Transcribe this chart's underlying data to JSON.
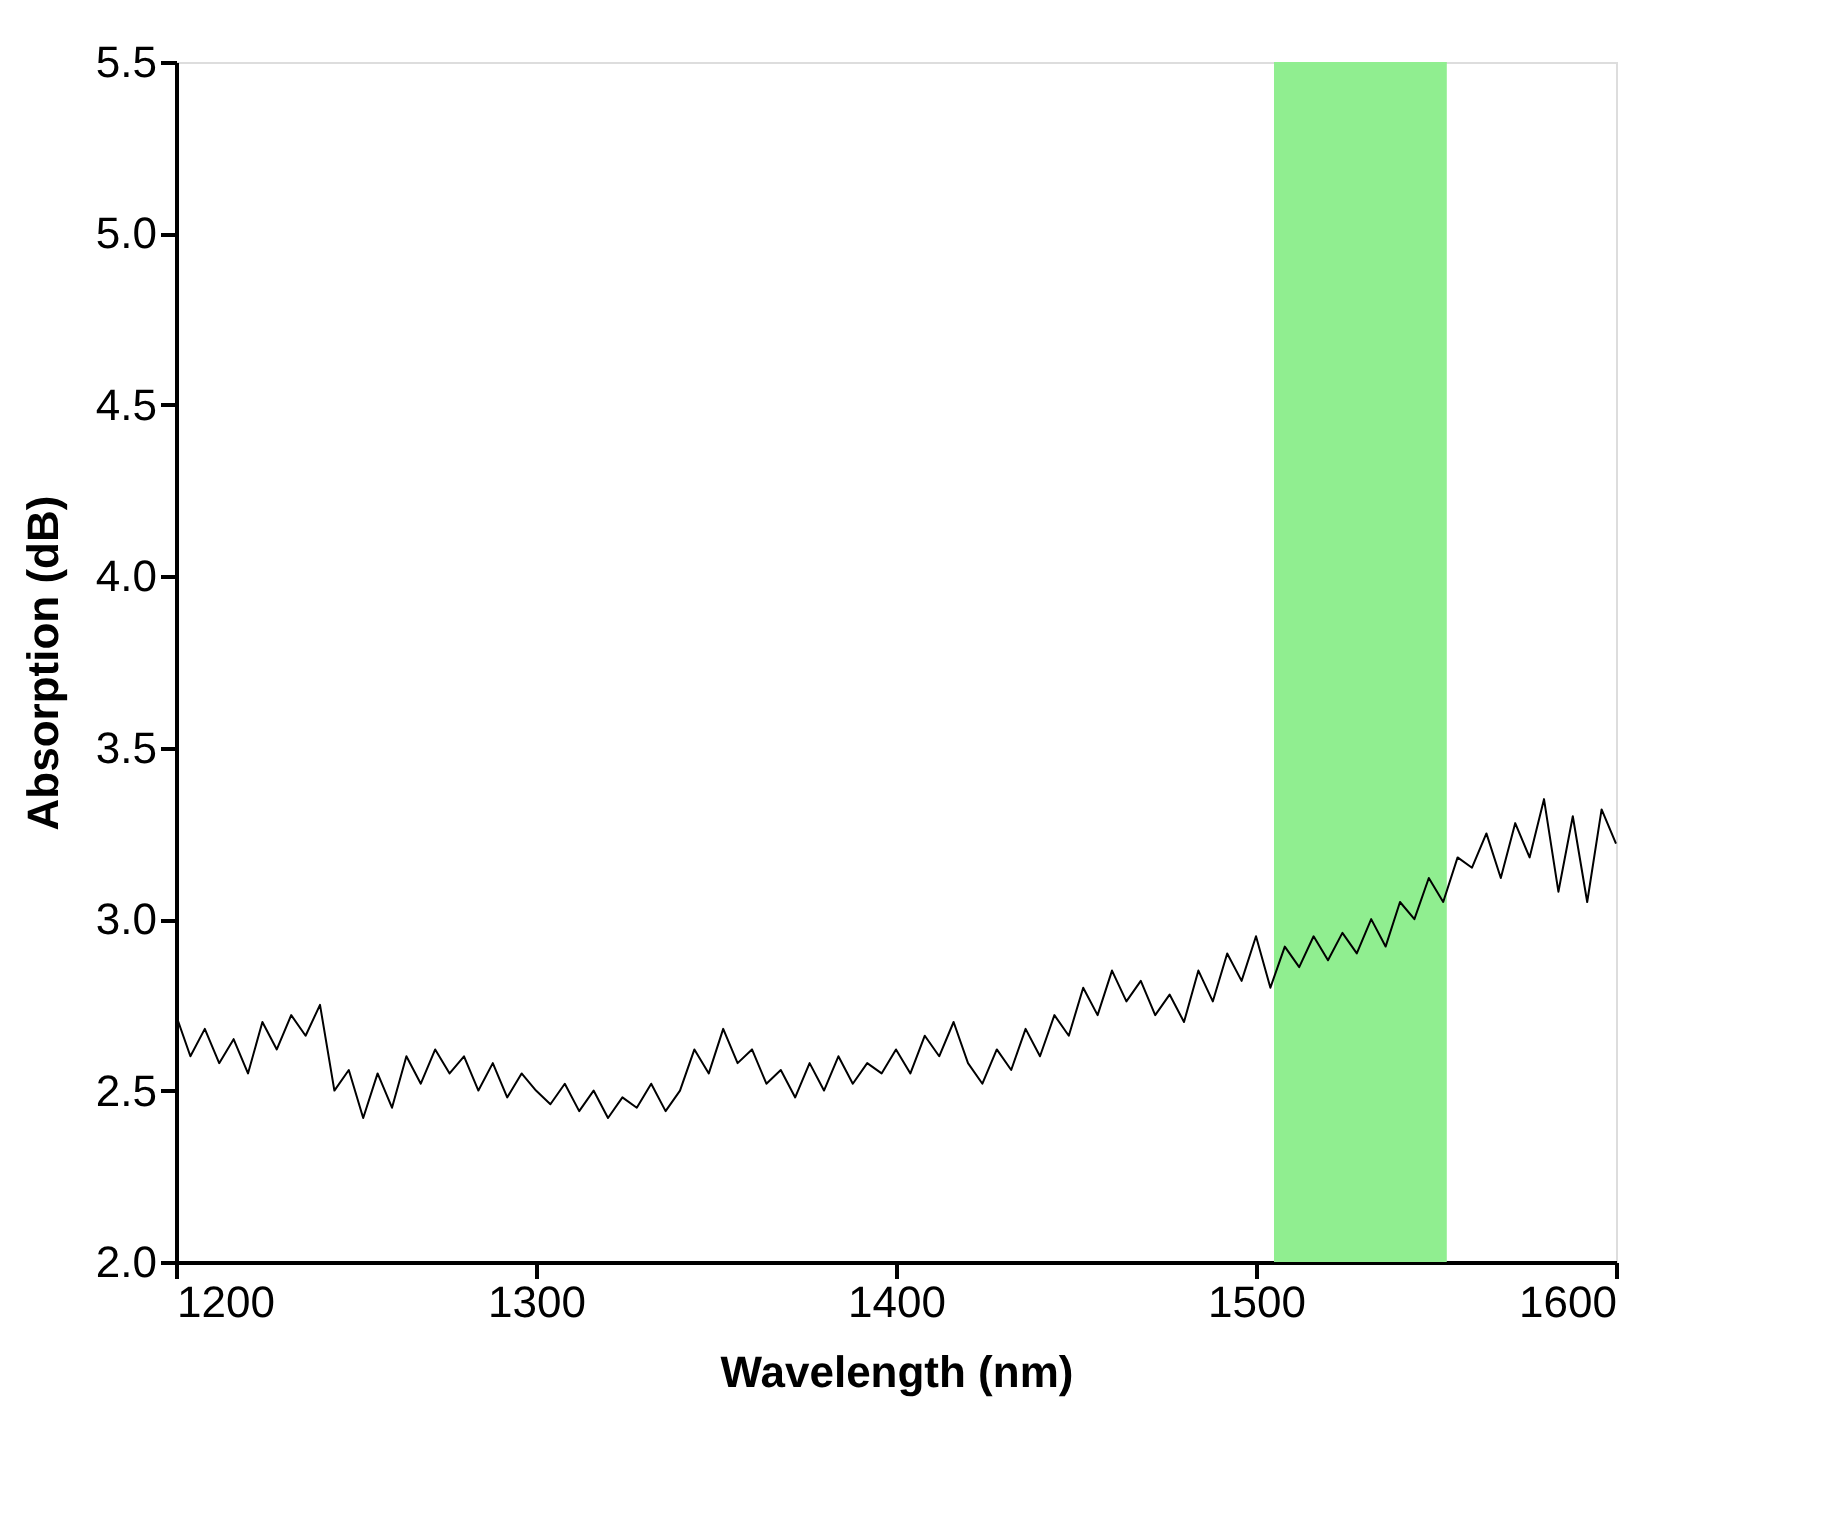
{
  "chart_data": {
    "type": "line",
    "xlabel": "Wavelength (nm)",
    "ylabel": "Absorption (dB)",
    "x": [
      1200,
      1204,
      1208,
      1212,
      1216,
      1220,
      1224,
      1228,
      1232,
      1236,
      1240,
      1244,
      1248,
      1252,
      1256,
      1260,
      1264,
      1268,
      1272,
      1276,
      1280,
      1284,
      1288,
      1292,
      1296,
      1300,
      1304,
      1308,
      1312,
      1316,
      1320,
      1324,
      1328,
      1332,
      1336,
      1340,
      1344,
      1348,
      1352,
      1356,
      1360,
      1364,
      1368,
      1372,
      1376,
      1380,
      1384,
      1388,
      1392,
      1396,
      1400,
      1404,
      1408,
      1412,
      1416,
      1420,
      1424,
      1428,
      1432,
      1436,
      1440,
      1444,
      1448,
      1452,
      1456,
      1460,
      1464,
      1468,
      1472,
      1476,
      1480,
      1484,
      1488,
      1492,
      1496,
      1500,
      1504,
      1508,
      1512,
      1516,
      1520,
      1524,
      1528,
      1532,
      1536,
      1540,
      1544,
      1548,
      1552,
      1556,
      1560,
      1564,
      1568,
      1572,
      1576,
      1580,
      1584,
      1588,
      1592,
      1596,
      1600
    ],
    "series": [
      {
        "color": "#000000",
        "values": [
          2.72,
          2.6,
          2.68,
          2.58,
          2.65,
          2.55,
          2.7,
          2.62,
          2.72,
          2.66,
          2.75,
          2.5,
          2.56,
          2.42,
          2.55,
          2.45,
          2.6,
          2.52,
          2.62,
          2.55,
          2.6,
          2.5,
          2.58,
          2.48,
          2.55,
          2.5,
          2.46,
          2.52,
          2.44,
          2.5,
          2.42,
          2.48,
          2.45,
          2.52,
          2.44,
          2.5,
          2.62,
          2.55,
          2.68,
          2.58,
          2.62,
          2.52,
          2.56,
          2.48,
          2.58,
          2.5,
          2.6,
          2.52,
          2.58,
          2.55,
          2.62,
          2.55,
          2.66,
          2.6,
          2.7,
          2.58,
          2.52,
          2.62,
          2.56,
          2.68,
          2.6,
          2.72,
          2.66,
          2.8,
          2.72,
          2.85,
          2.76,
          2.82,
          2.72,
          2.78,
          2.7,
          2.85,
          2.76,
          2.9,
          2.82,
          2.95,
          2.8,
          2.92,
          2.86,
          2.95,
          2.88,
          2.96,
          2.9,
          3.0,
          2.92,
          3.05,
          3.0,
          3.12,
          3.05,
          3.18,
          3.15,
          3.25,
          3.12,
          3.28,
          3.18,
          3.35,
          3.08,
          3.3,
          3.05,
          3.32,
          3.22
        ]
      }
    ],
    "xlim": [
      1200,
      1600
    ],
    "xticks": [
      1200,
      1300,
      1400,
      1500,
      1600
    ],
    "ylim": [
      2.0,
      5.5
    ],
    "yticks": [
      {
        "value": 2.0,
        "label": "2.0"
      },
      {
        "value": 2.5,
        "label": "2.5"
      },
      {
        "value": 3.0,
        "label": "3.0"
      },
      {
        "value": 3.5,
        "label": "3.5"
      },
      {
        "value": 4.0,
        "label": "4.0"
      },
      {
        "value": 4.5,
        "label": "4.5"
      },
      {
        "value": 5.0,
        "label": "5.0"
      },
      {
        "value": 5.5,
        "label": "5.5"
      }
    ],
    "bands": [
      {
        "axis": "x",
        "from": 1505,
        "to": 1553,
        "color": "#90ee90"
      }
    ],
    "grid": false
  }
}
